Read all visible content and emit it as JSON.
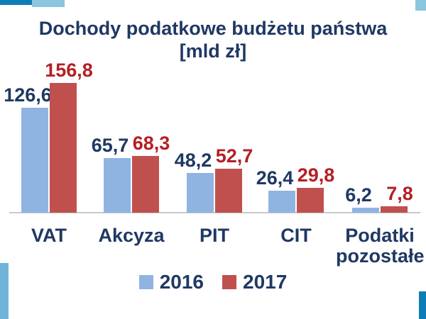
{
  "title": {
    "line1": "Dochody podatkowe budżetu państwa",
    "line2": "[mld zł]"
  },
  "colors": {
    "navy_text": "#1f3864",
    "red_text": "#b41f24",
    "bar_blue": "#8fb4e2",
    "bar_red": "#c0504d",
    "axis_gray": "#c9c9c9",
    "decor_blue": "#0f7db5",
    "decor_light_blue": "#8cc5de"
  },
  "chart_data": {
    "type": "bar",
    "title": "Dochody podatkowe budżetu państwa [mld zł]",
    "xlabel": "",
    "ylabel": "mld zł",
    "ylim": [
      0,
      170
    ],
    "grid": false,
    "legend_position": "bottom",
    "categories": [
      "VAT",
      "Akcyza",
      "PIT",
      "CIT",
      "Podatki pozostałe"
    ],
    "series": [
      {
        "name": "2016",
        "values": [
          126.6,
          65.7,
          48.2,
          26.4,
          6.2
        ],
        "labels": [
          "126,6",
          "65,7",
          "48,2",
          "26,4",
          "6,2"
        ],
        "color": "#8fb4e2",
        "label_color": "#1f3864"
      },
      {
        "name": "2017",
        "values": [
          156.8,
          68.3,
          52.7,
          29.8,
          7.8
        ],
        "labels": [
          "156,8",
          "68,3",
          "52,7",
          "29,8",
          "7,8"
        ],
        "color": "#c0504d",
        "label_color": "#b41f24"
      }
    ]
  }
}
